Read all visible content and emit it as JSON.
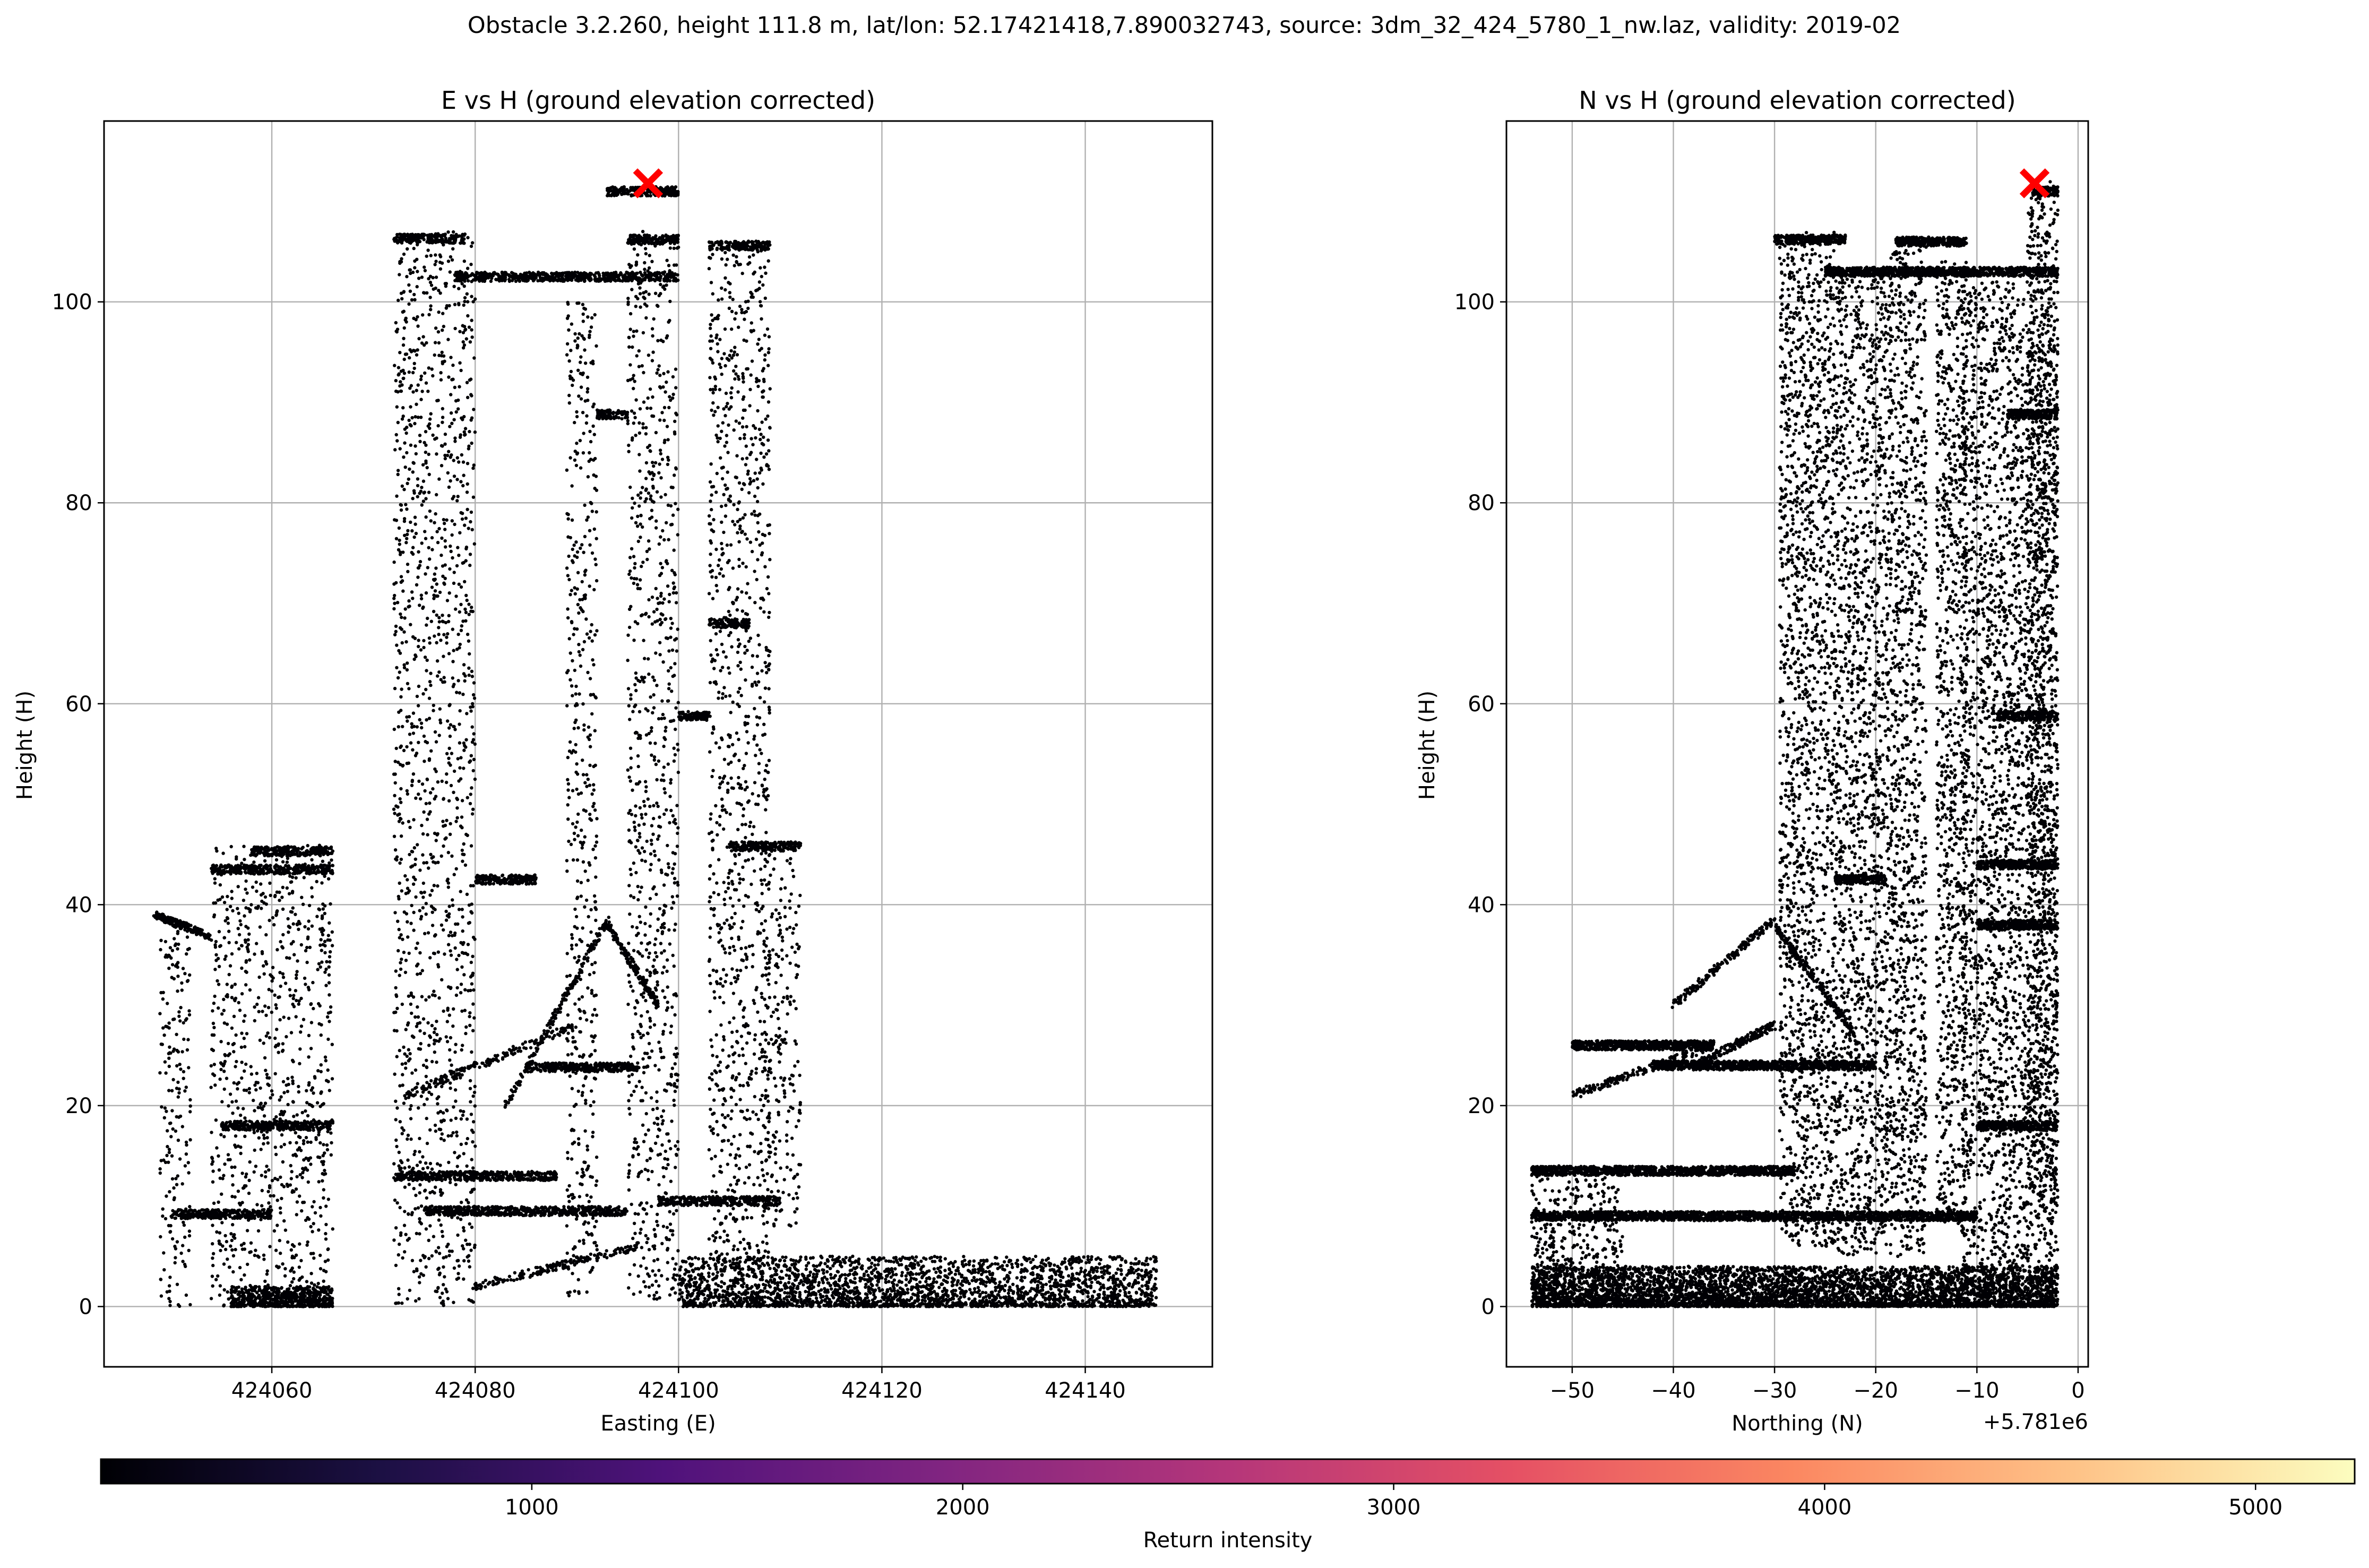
{
  "figure_title": "Obstacle 3.2.260, height 111.8 m, lat/lon: 52.17421418,7.890032743, source: 3dm_32_424_5780_1_nw.laz, validity: 2019-02",
  "chart_data": [
    {
      "type": "scatter",
      "title": "E vs H (ground elevation corrected)",
      "xlabel": "Easting (E)",
      "ylabel": "Height (H)",
      "xlim": [
        424043.5,
        424152.5
      ],
      "ylim": [
        -6,
        118
      ],
      "xticks": [
        424060,
        424080,
        424100,
        424120,
        424140
      ],
      "xtick_labels": [
        "424060",
        "424080",
        "424100",
        "424120",
        "424140"
      ],
      "yticks": [
        0,
        20,
        40,
        60,
        80,
        100
      ],
      "ytick_labels": [
        "0",
        "20",
        "40",
        "60",
        "80",
        "100"
      ],
      "grid": true,
      "marker": {
        "x": 424097,
        "y": 111.8,
        "color": "#ff0000",
        "symbol": "x"
      },
      "point_color": "#000004",
      "structures": {
        "columns": [
          {
            "x": [
              424054,
              424066
            ],
            "y": [
              0,
              46
            ]
          },
          {
            "x": [
              424072,
              424080
            ],
            "y": [
              0,
              107
            ]
          },
          {
            "x": [
              424089,
              424092
            ],
            "y": [
              1,
              100
            ]
          },
          {
            "x": [
              424095,
              424100
            ],
            "y": [
              0,
              107
            ]
          },
          {
            "x": [
              424103,
              424109
            ],
            "y": [
              4,
              106
            ]
          },
          {
            "x": [
              424108,
              424112
            ],
            "y": [
              8,
              46
            ]
          },
          {
            "x": [
              424049,
              424052
            ],
            "y": [
              0,
              38
            ]
          }
        ],
        "lines": [
          {
            "x": [
              424072,
              424079
            ],
            "y": 106.3
          },
          {
            "x": [
              424078,
              424100
            ],
            "y": 102.5
          },
          {
            "x": [
              424095,
              424100
            ],
            "y": 106.2
          },
          {
            "x": [
              424103,
              424109
            ],
            "y": 105.6
          },
          {
            "x": [
              424093,
              424100
            ],
            "y": 111.0
          },
          {
            "x": [
              424054,
              424066
            ],
            "y": 43.5
          },
          {
            "x": [
              424058,
              424066
            ],
            "y": 45.3
          },
          {
            "x": [
              424050,
              424060
            ],
            "y": 9.2
          },
          {
            "x": [
              424055,
              424066
            ],
            "y": 18.0
          },
          {
            "x": [
              424072,
              424088
            ],
            "y": 13.0
          },
          {
            "x": [
              424075,
              424095
            ],
            "y": 9.5
          },
          {
            "x": [
              424085,
              424096
            ],
            "y": 23.8
          },
          {
            "x": [
              424105,
              424112
            ],
            "y": 45.8
          },
          {
            "x": [
              424080,
              424086
            ],
            "y": 42.5
          },
          {
            "x": [
              424092,
              424095
            ],
            "y": 88.8
          },
          {
            "x": [
              424098,
              424110
            ],
            "y": 10.5
          },
          {
            "x": [
              424103,
              424107
            ],
            "y": 68.0
          },
          {
            "x": [
              424100,
              424103
            ],
            "y": 58.8
          }
        ],
        "slopes": [
          {
            "x": [
              424048.5,
              424054
            ],
            "y": [
              39,
              36.8
            ]
          },
          {
            "x": [
              424073,
              424090
            ],
            "y": [
              21,
              28
            ]
          },
          {
            "x": [
              424083,
              424093
            ],
            "y": [
              20,
              38.5
            ]
          },
          {
            "x": [
              424093,
              424098
            ],
            "y": [
              38,
              30
            ]
          },
          {
            "x": [
              424080,
              424096
            ],
            "y": [
              2,
              6
            ]
          }
        ],
        "ground": [
          {
            "x": [
              424056,
              424066
            ],
            "y": [
              0,
              2
            ]
          },
          {
            "x": [
              424100,
              424147
            ],
            "y": [
              0,
              5
            ]
          }
        ]
      }
    },
    {
      "type": "scatter",
      "title": "N vs H (ground elevation corrected)",
      "xlabel": "Northing (N)",
      "ylabel": "Height (H)",
      "offset_label": "+5.781e6",
      "xlim": [
        -56.5,
        1
      ],
      "ylim": [
        -6,
        118
      ],
      "xticks": [
        -50,
        -40,
        -30,
        -20,
        -10,
        0
      ],
      "xtick_labels": [
        "−50",
        "−40",
        "−30",
        "−20",
        "−10",
        "0"
      ],
      "yticks": [
        0,
        20,
        40,
        60,
        80,
        100
      ],
      "ytick_labels": [
        "0",
        "20",
        "40",
        "60",
        "80",
        "100"
      ],
      "grid": true,
      "marker": {
        "x": -4.3,
        "y": 111.8,
        "color": "#ff0000",
        "symbol": "x"
      },
      "point_color": "#000004",
      "structures": {
        "columns": [
          {
            "x": [
              -29.5,
              -24
            ],
            "y": [
              6,
              107
            ]
          },
          {
            "x": [
              -24,
              -19
            ],
            "y": [
              5,
              103
            ]
          },
          {
            "x": [
              -19,
              -15
            ],
            "y": [
              5,
              106
            ]
          },
          {
            "x": [
              -14,
              -11
            ],
            "y": [
              8,
              104
            ]
          },
          {
            "x": [
              -11.5,
              -2
            ],
            "y": [
              0,
              102
            ]
          },
          {
            "x": [
              -5,
              -2
            ],
            "y": [
              9,
              112
            ]
          },
          {
            "x": [
              -54,
              -45
            ],
            "y": [
              0,
              14
            ]
          }
        ],
        "lines": [
          {
            "x": [
              -30,
              -23
            ],
            "y": 106.2
          },
          {
            "x": [
              -25,
              -2
            ],
            "y": 103.0
          },
          {
            "x": [
              -18,
              -11
            ],
            "y": 106.0
          },
          {
            "x": [
              -4.5,
              -2
            ],
            "y": 111.0
          },
          {
            "x": [
              -7,
              -2
            ],
            "y": 88.8
          },
          {
            "x": [
              -10,
              -2
            ],
            "y": 44.0
          },
          {
            "x": [
              -10,
              -2
            ],
            "y": 38.0
          },
          {
            "x": [
              -54,
              -28
            ],
            "y": 13.5
          },
          {
            "x": [
              -54,
              -10
            ],
            "y": 9.0
          },
          {
            "x": [
              -50,
              -36
            ],
            "y": 26.0
          },
          {
            "x": [
              -42,
              -20
            ],
            "y": 24.0
          },
          {
            "x": [
              -24,
              -19
            ],
            "y": 42.5
          },
          {
            "x": [
              -10,
              -2
            ],
            "y": 18.0
          },
          {
            "x": [
              -8,
              -2
            ],
            "y": 58.8
          }
        ],
        "slopes": [
          {
            "x": [
              -50,
              -36
            ],
            "y": [
              21,
              26
            ]
          },
          {
            "x": [
              -40,
              -30
            ],
            "y": [
              30,
              38.5
            ]
          },
          {
            "x": [
              -38,
              -30
            ],
            "y": [
              24,
              28
            ]
          },
          {
            "x": [
              -30,
              -22
            ],
            "y": [
              38,
              27
            ]
          }
        ],
        "ground": [
          {
            "x": [
              -54,
              -2
            ],
            "y": [
              0,
              4
            ]
          }
        ]
      }
    },
    {
      "type": "colorbar",
      "label": "Return intensity",
      "cmap": "magma",
      "range": [
        0,
        5230
      ],
      "ticks": [
        1000,
        2000,
        3000,
        4000,
        5000
      ],
      "tick_labels": [
        "1000",
        "2000",
        "3000",
        "4000",
        "5000"
      ],
      "colors": [
        "#000004",
        "#1c1044",
        "#4f127b",
        "#812581",
        "#b5367a",
        "#e55064",
        "#fb8761",
        "#fec287",
        "#fcfdbf"
      ]
    }
  ]
}
